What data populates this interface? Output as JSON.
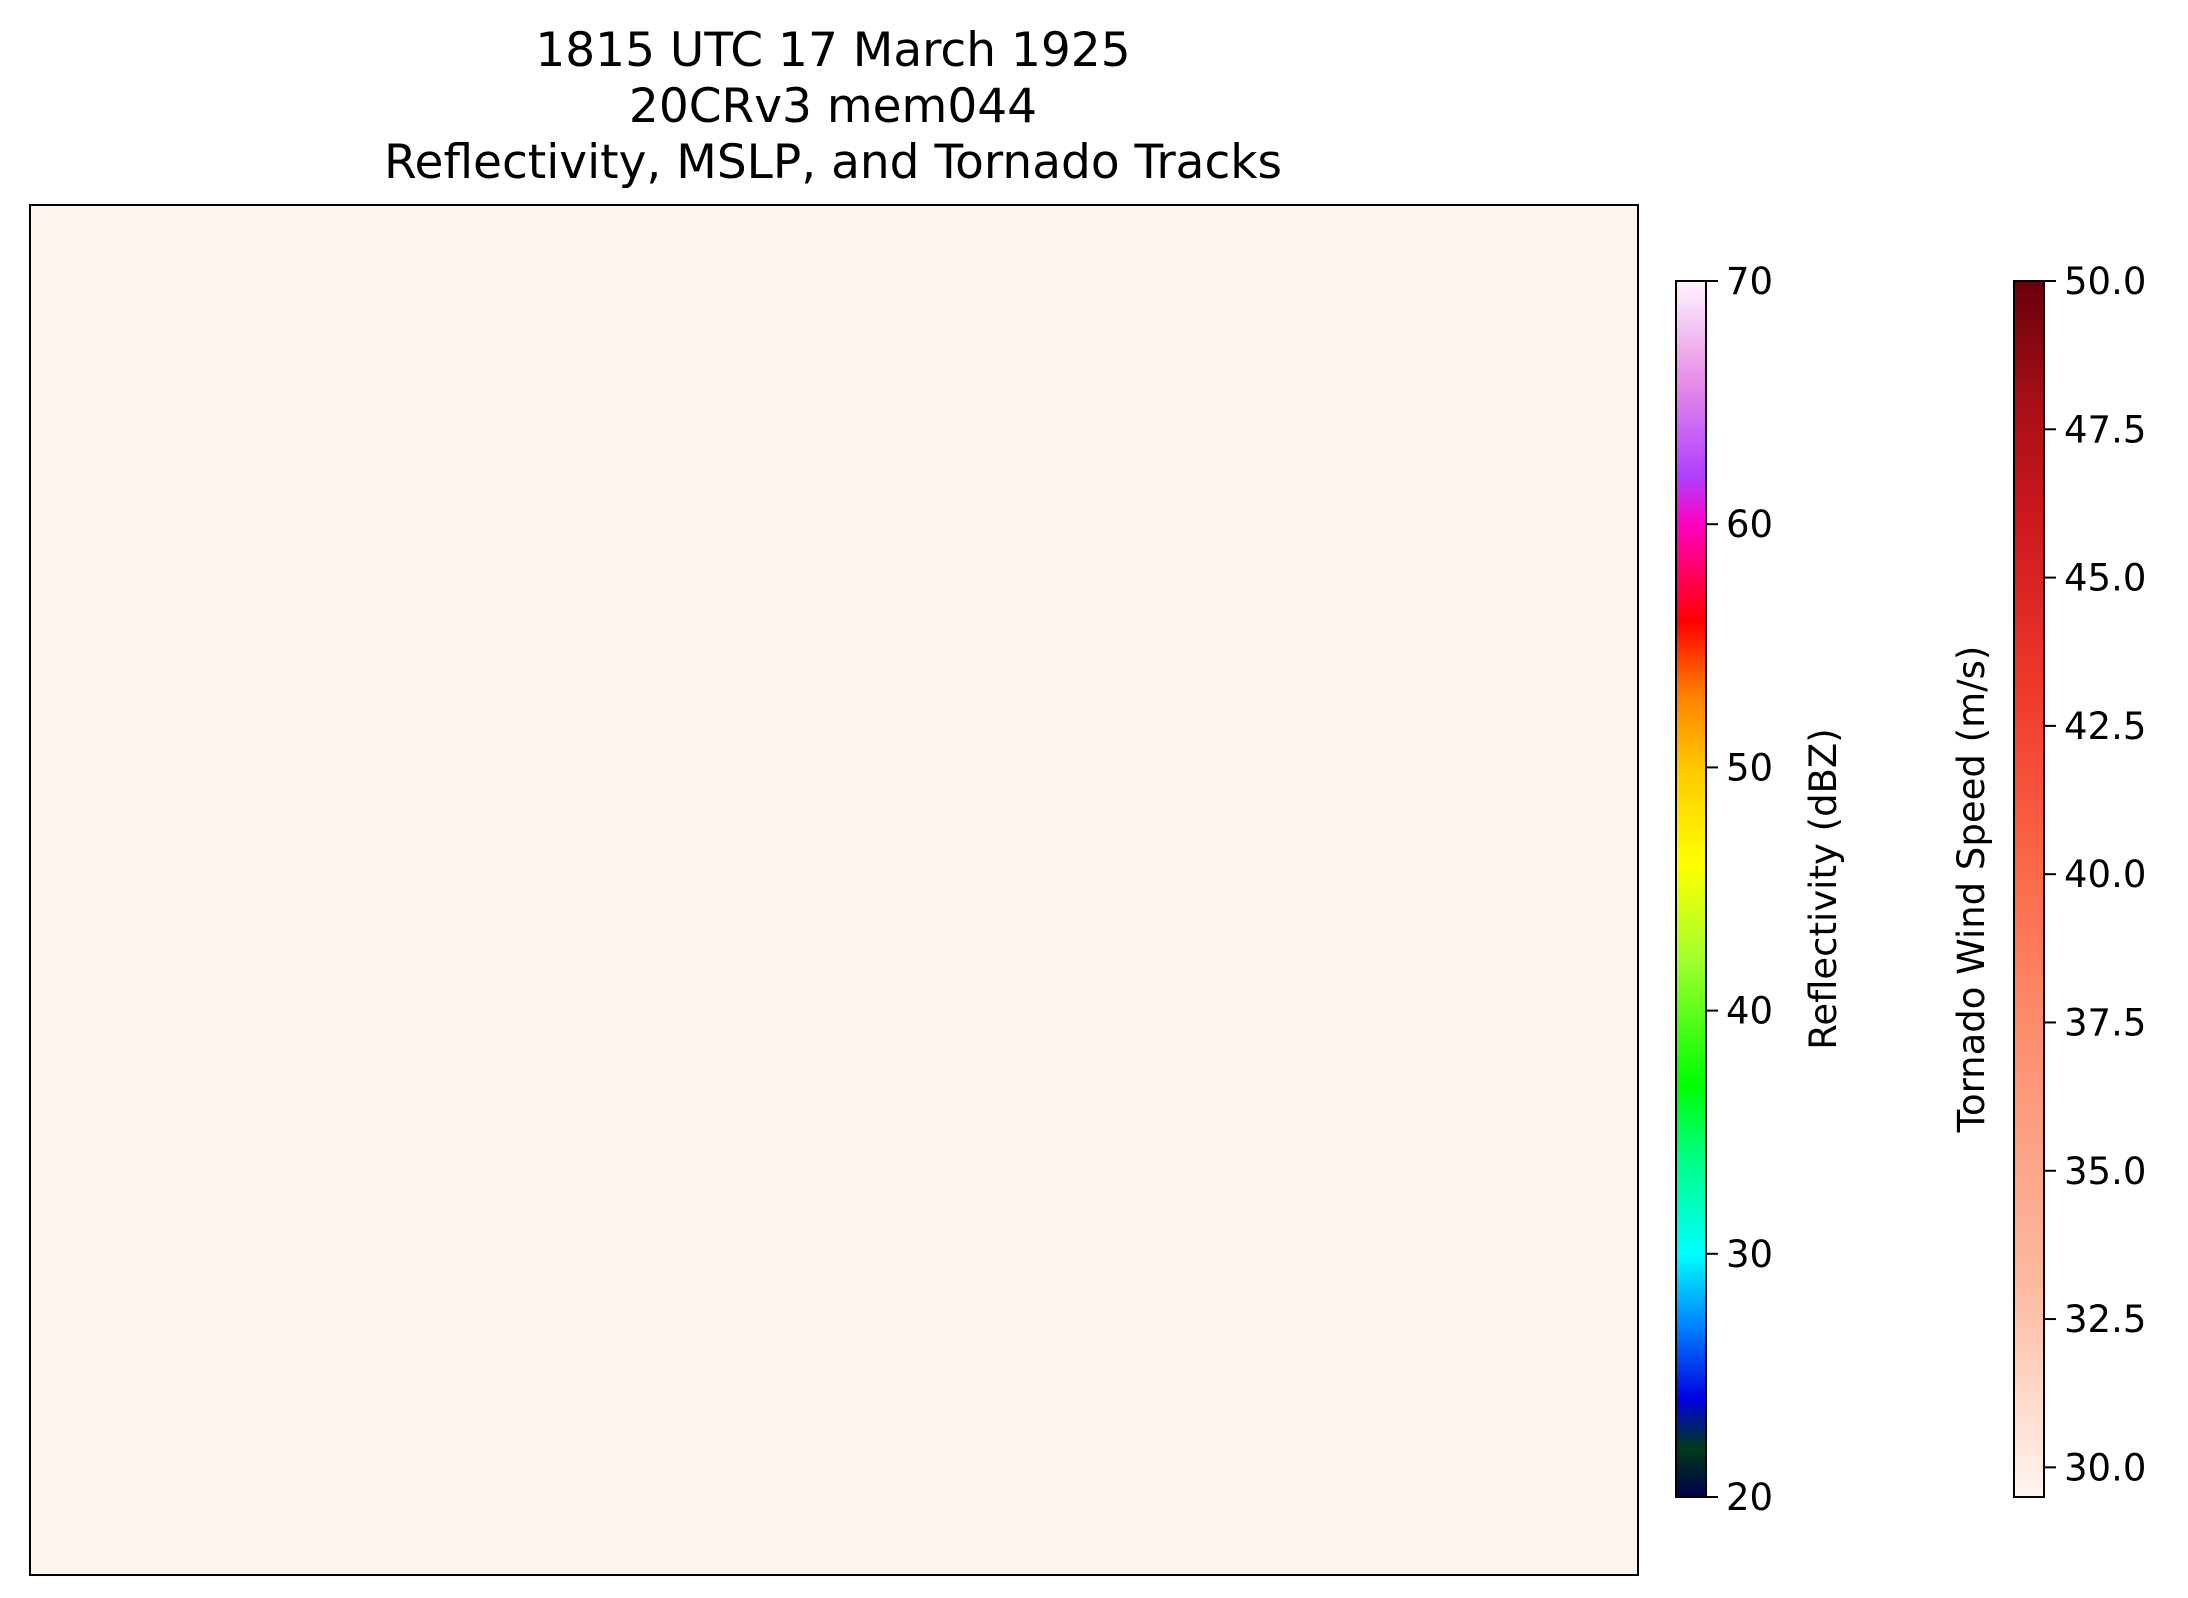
{
  "chart_data": [
    {
      "type": "heatmap",
      "title_lines": [
        "1815 UTC 17 March 1925",
        "20CRv3 mem044",
        "Reflectivity, MSLP, and Tornado Tracks"
      ],
      "map_background_color": "#fff5f0",
      "map_frame_color": "#000000",
      "series": []
    },
    {
      "type": "colorbar",
      "label": "Reflectivity (dBZ)",
      "range": [
        20,
        70
      ],
      "ticks": [
        "20",
        "30",
        "40",
        "50",
        "60",
        "70"
      ],
      "tick_values": [
        20,
        30,
        40,
        50,
        60,
        70
      ],
      "colormap_stops": [
        {
          "value": 20,
          "color": "#00004c"
        },
        {
          "value": 22,
          "color": "#003a1a"
        },
        {
          "value": 24,
          "color": "#0000e0"
        },
        {
          "value": 27,
          "color": "#0080ff"
        },
        {
          "value": 30,
          "color": "#00ffff"
        },
        {
          "value": 34,
          "color": "#00ff80"
        },
        {
          "value": 37,
          "color": "#00ff00"
        },
        {
          "value": 42,
          "color": "#a0ff30"
        },
        {
          "value": 46,
          "color": "#ffff00"
        },
        {
          "value": 50,
          "color": "#ffc800"
        },
        {
          "value": 53,
          "color": "#ff8000"
        },
        {
          "value": 56,
          "color": "#ff0000"
        },
        {
          "value": 60,
          "color": "#ff00c0"
        },
        {
          "value": 62,
          "color": "#b040ff"
        },
        {
          "value": 66,
          "color": "#e890e8"
        },
        {
          "value": 70,
          "color": "#fff5ff"
        }
      ]
    },
    {
      "type": "colorbar",
      "label": "Tornado Wind Speed (m/s)",
      "range": [
        29.5,
        50.0
      ],
      "ticks": [
        "30.0",
        "32.5",
        "35.0",
        "37.5",
        "40.0",
        "42.5",
        "45.0",
        "47.5",
        "50.0"
      ],
      "tick_values": [
        30.0,
        32.5,
        35.0,
        37.5,
        40.0,
        42.5,
        45.0,
        47.5,
        50.0
      ],
      "colormap_stops": [
        {
          "value": 29.5,
          "color": "#fff5f0"
        },
        {
          "value": 33.0,
          "color": "#fcbba1"
        },
        {
          "value": 37.0,
          "color": "#fc9272"
        },
        {
          "value": 40.0,
          "color": "#fb6a4a"
        },
        {
          "value": 43.0,
          "color": "#ef3b2c"
        },
        {
          "value": 46.0,
          "color": "#cb181d"
        },
        {
          "value": 48.0,
          "color": "#a50f15"
        },
        {
          "value": 50.0,
          "color": "#67000d"
        }
      ]
    }
  ]
}
